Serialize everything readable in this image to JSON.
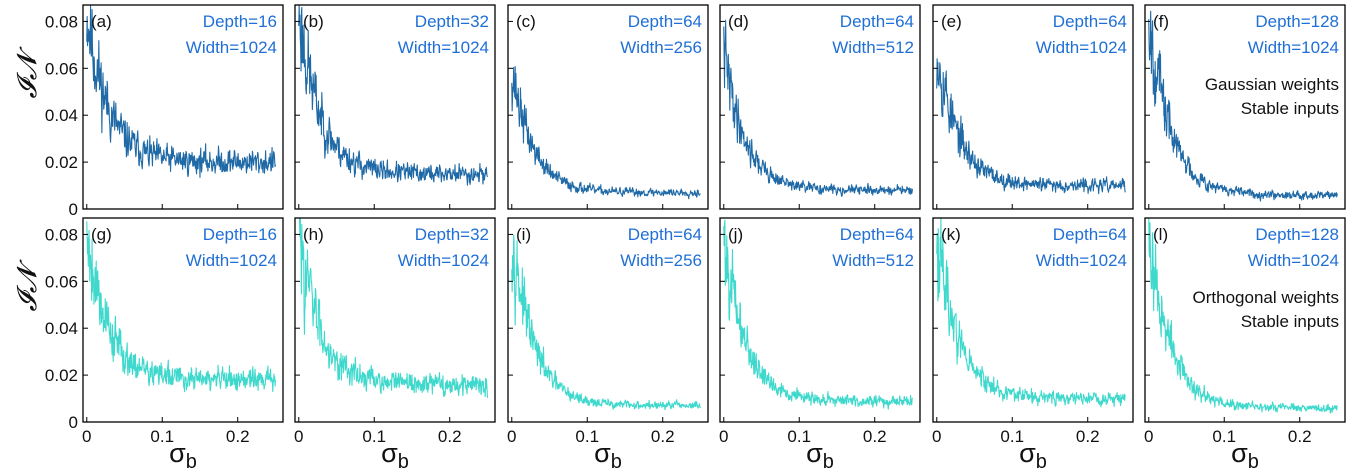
{
  "figure": {
    "y_axis_label": "𝓘𝓝",
    "x_axis_label": "σb",
    "y_ticks": [
      "0",
      "0.02",
      "0.04",
      "0.06",
      "0.08"
    ],
    "x_ticks": [
      "0",
      "0.1",
      "0.2"
    ]
  },
  "chart_data": [
    {
      "type": "line",
      "panel": "(a)",
      "depth_text": "Depth=16",
      "width_text": "Width=1024",
      "color": "#1f6aa6",
      "xlim": [
        -0.005,
        0.26
      ],
      "ylim": [
        0,
        0.087
      ],
      "start": 0.085,
      "floor": 0.02,
      "amp": 0.45,
      "seed": 11,
      "notes": []
    },
    {
      "type": "line",
      "panel": "(b)",
      "depth_text": "Depth=32",
      "width_text": "Width=1024",
      "color": "#1f6aa6",
      "xlim": [
        -0.005,
        0.26
      ],
      "ylim": [
        0,
        0.087
      ],
      "start": 0.085,
      "floor": 0.015,
      "amp": 0.45,
      "seed": 23,
      "notes": []
    },
    {
      "type": "line",
      "panel": "(c)",
      "depth_text": "Depth=64",
      "width_text": "Width=256",
      "color": "#1f6aa6",
      "xlim": [
        -0.005,
        0.26
      ],
      "ylim": [
        0,
        0.087
      ],
      "start": 0.06,
      "floor": 0.007,
      "amp": 0.4,
      "seed": 37,
      "notes": []
    },
    {
      "type": "line",
      "panel": "(d)",
      "depth_text": "Depth=64",
      "width_text": "Width=512",
      "color": "#1f6aa6",
      "xlim": [
        -0.005,
        0.26
      ],
      "ylim": [
        0,
        0.087
      ],
      "start": 0.068,
      "floor": 0.008,
      "amp": 0.4,
      "seed": 41,
      "notes": []
    },
    {
      "type": "line",
      "panel": "(e)",
      "depth_text": "Depth=64",
      "width_text": "Width=1024",
      "color": "#1f6aa6",
      "xlim": [
        -0.005,
        0.26
      ],
      "ylim": [
        0,
        0.087
      ],
      "start": 0.07,
      "floor": 0.01,
      "amp": 0.45,
      "seed": 53,
      "notes": []
    },
    {
      "type": "line",
      "panel": "(f)",
      "depth_text": "Depth=128",
      "width_text": "Width=1024",
      "color": "#1f6aa6",
      "xlim": [
        -0.005,
        0.26
      ],
      "ylim": [
        0,
        0.087
      ],
      "start": 0.085,
      "floor": 0.006,
      "amp": 0.45,
      "seed": 67,
      "notes": [
        "Gaussian weights",
        "Stable inputs"
      ]
    },
    {
      "type": "line",
      "panel": "(g)",
      "depth_text": "Depth=16",
      "width_text": "Width=1024",
      "color": "#3ed9cc",
      "xlim": [
        -0.005,
        0.26
      ],
      "ylim": [
        0,
        0.087
      ],
      "start": 0.083,
      "floor": 0.018,
      "amp": 0.45,
      "seed": 79,
      "notes": []
    },
    {
      "type": "line",
      "panel": "(h)",
      "depth_text": "Depth=32",
      "width_text": "Width=1024",
      "color": "#3ed9cc",
      "xlim": [
        -0.005,
        0.26
      ],
      "ylim": [
        0,
        0.087
      ],
      "start": 0.083,
      "floor": 0.016,
      "amp": 0.45,
      "seed": 83,
      "notes": []
    },
    {
      "type": "line",
      "panel": "(i)",
      "depth_text": "Depth=64",
      "width_text": "Width=256",
      "color": "#3ed9cc",
      "xlim": [
        -0.005,
        0.26
      ],
      "ylim": [
        0,
        0.087
      ],
      "start": 0.082,
      "floor": 0.007,
      "amp": 0.4,
      "seed": 97,
      "notes": []
    },
    {
      "type": "line",
      "panel": "(j)",
      "depth_text": "Depth=64",
      "width_text": "Width=512",
      "color": "#3ed9cc",
      "xlim": [
        -0.005,
        0.26
      ],
      "ylim": [
        0,
        0.087
      ],
      "start": 0.08,
      "floor": 0.009,
      "amp": 0.42,
      "seed": 101,
      "notes": []
    },
    {
      "type": "line",
      "panel": "(k)",
      "depth_text": "Depth=64",
      "width_text": "Width=1024",
      "color": "#3ed9cc",
      "xlim": [
        -0.005,
        0.26
      ],
      "ylim": [
        0,
        0.087
      ],
      "start": 0.082,
      "floor": 0.01,
      "amp": 0.45,
      "seed": 113,
      "notes": []
    },
    {
      "type": "line",
      "panel": "(l)",
      "depth_text": "Depth=128",
      "width_text": "Width=1024",
      "color": "#3ed9cc",
      "xlim": [
        -0.005,
        0.26
      ],
      "ylim": [
        0,
        0.087
      ],
      "start": 0.082,
      "floor": 0.006,
      "amp": 0.45,
      "seed": 127,
      "notes": [
        "Orthogonal weights",
        "Stable inputs"
      ]
    }
  ]
}
